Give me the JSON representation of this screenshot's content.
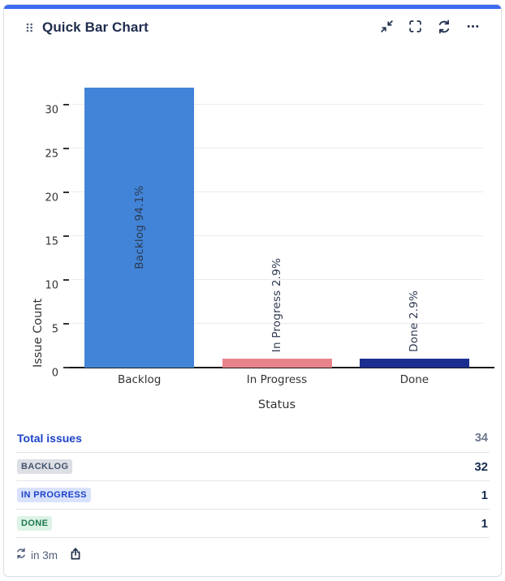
{
  "card": {
    "title": "Quick Bar Chart"
  },
  "chart_data": {
    "type": "bar",
    "categories": [
      "Backlog",
      "In Progress",
      "Done"
    ],
    "values": [
      32,
      1,
      1
    ],
    "bar_labels": [
      "Backlog 94.1%",
      "In Progress 2.9%",
      "Done 2.9%"
    ],
    "bar_colors": [
      "#4285D8",
      "#E8838B",
      "#1C2F90"
    ],
    "xlabel": "Status",
    "ylabel": "Issue Count",
    "ylim": [
      0,
      33
    ],
    "yticks": [
      0,
      5,
      10,
      15,
      20,
      25,
      30
    ],
    "grid": true,
    "legend": "none"
  },
  "table": {
    "rows": [
      {
        "label": "Total issues",
        "value": "34",
        "type": "link"
      },
      {
        "label": "BACKLOG",
        "value": "32",
        "type": "badge",
        "badge_bg": "#DCDFE4",
        "badge_color": "#44546F"
      },
      {
        "label": "IN PROGRESS",
        "value": "1",
        "type": "badge",
        "badge_bg": "#D9E2FC",
        "badge_color": "#1D43C8"
      },
      {
        "label": "DONE",
        "value": "1",
        "type": "badge",
        "badge_bg": "#DCF3E6",
        "badge_color": "#1F7A50"
      }
    ]
  },
  "footer": {
    "refresh_countdown": "in 3m"
  },
  "colors": {
    "accent": "#3D6BF0",
    "title_text": "#1E2B4D",
    "icon": "#22304D",
    "link": "#1D43C8",
    "gridline": "#EAEAEA",
    "axis": "#1A1A1A",
    "chart_text": "#333333",
    "muted": "#6B778C"
  }
}
